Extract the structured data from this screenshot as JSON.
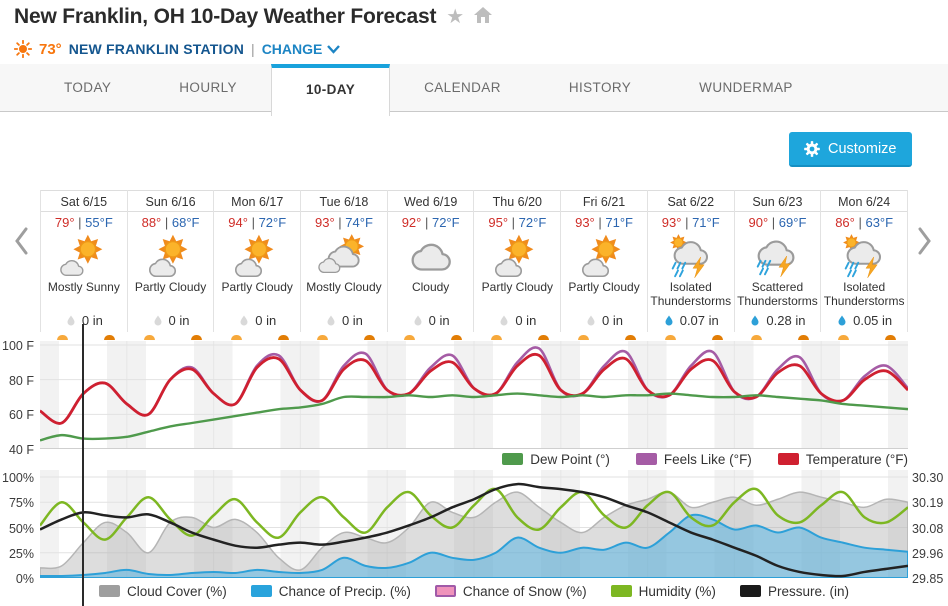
{
  "header": {
    "title": "New Franklin, OH 10-Day Weather Forecast",
    "star_icon": "★",
    "current_temp": "73°",
    "station_name": "NEW FRANKLIN STATION",
    "separator": "|",
    "change_label": "CHANGE"
  },
  "tabs": [
    {
      "label": "TODAY",
      "active": false
    },
    {
      "label": "HOURLY",
      "active": false
    },
    {
      "label": "10-DAY",
      "active": true
    },
    {
      "label": "CALENDAR",
      "active": false
    },
    {
      "label": "HISTORY",
      "active": false
    },
    {
      "label": "WUNDERMAP",
      "active": false
    }
  ],
  "customize_label": "Customize",
  "days": [
    {
      "label": "Sat 6/15",
      "high": "79°",
      "low": "55°F",
      "icon": "mostly-sunny",
      "condition": "Mostly Sunny",
      "precip": "0 in",
      "precip_active": false
    },
    {
      "label": "Sun 6/16",
      "high": "88°",
      "low": "68°F",
      "icon": "partly-cloudy",
      "condition": "Partly Cloudy",
      "precip": "0 in",
      "precip_active": false
    },
    {
      "label": "Mon 6/17",
      "high": "94°",
      "low": "72°F",
      "icon": "partly-cloudy",
      "condition": "Partly Cloudy",
      "precip": "0 in",
      "precip_active": false
    },
    {
      "label": "Tue 6/18",
      "high": "93°",
      "low": "74°F",
      "icon": "mostly-cloudy",
      "condition": "Mostly Cloudy",
      "precip": "0 in",
      "precip_active": false
    },
    {
      "label": "Wed 6/19",
      "high": "92°",
      "low": "72°F",
      "icon": "cloudy",
      "condition": "Cloudy",
      "precip": "0 in",
      "precip_active": false
    },
    {
      "label": "Thu 6/20",
      "high": "95°",
      "low": "72°F",
      "icon": "partly-cloudy",
      "condition": "Partly Cloudy",
      "precip": "0 in",
      "precip_active": false
    },
    {
      "label": "Fri 6/21",
      "high": "93°",
      "low": "71°F",
      "icon": "partly-cloudy",
      "condition": "Partly Cloudy",
      "precip": "0 in",
      "precip_active": false
    },
    {
      "label": "Sat 6/22",
      "high": "93°",
      "low": "71°F",
      "icon": "isolated-tstorms",
      "condition": "Isolated Thunderstorms",
      "precip": "0.07 in",
      "precip_active": true
    },
    {
      "label": "Sun 6/23",
      "high": "90°",
      "low": "69°F",
      "icon": "scattered-tstorms",
      "condition": "Scattered Thunderstorms",
      "precip": "0.28 in",
      "precip_active": true
    },
    {
      "label": "Mon 6/24",
      "high": "86°",
      "low": "63°F",
      "icon": "isolated-tstorms",
      "condition": "Isolated Thunderstorms",
      "precip": "0.05 in",
      "precip_active": true
    }
  ],
  "charts": {
    "temperature": {
      "type": "line",
      "x_range_days": [
        0,
        10
      ],
      "y_ticks": [
        "100 F",
        "80 F",
        "60 F",
        "40 F"
      ],
      "ylim": [
        40,
        102
      ],
      "series": [
        {
          "name": "Feels Like (°F)",
          "color": "#a55ca5",
          "values": [
            62,
            55,
            72,
            78,
            66,
            60,
            80,
            87,
            72,
            66,
            88,
            94,
            74,
            68,
            88,
            95,
            74,
            72,
            87,
            94,
            75,
            72,
            90,
            98,
            74,
            72,
            88,
            96,
            74,
            71,
            88,
            96,
            73,
            70,
            86,
            93,
            72,
            68,
            82,
            88,
            75
          ]
        },
        {
          "name": "Temperature (°F)",
          "color": "#cf2030",
          "values": [
            62,
            55,
            72,
            78,
            66,
            60,
            80,
            86,
            72,
            66,
            87,
            92,
            74,
            68,
            86,
            91,
            74,
            72,
            85,
            90,
            75,
            72,
            88,
            94,
            74,
            72,
            86,
            92,
            74,
            71,
            86,
            91,
            73,
            70,
            84,
            88,
            72,
            68,
            80,
            85,
            74
          ]
        },
        {
          "name": "Dew Point (°)",
          "color": "#4f9a4c",
          "values": [
            45,
            48,
            46,
            46,
            47,
            50,
            53,
            55,
            57,
            59,
            61,
            63,
            64,
            66,
            70,
            70,
            70,
            71,
            70,
            71,
            70,
            71,
            72,
            71,
            70,
            71,
            70,
            71,
            71,
            72,
            71,
            70,
            70,
            71,
            70,
            69,
            68,
            66,
            65,
            64,
            63
          ]
        }
      ],
      "legend": [
        {
          "label": "Dew Point (°)",
          "color": "#4f9a4c"
        },
        {
          "label": "Feels Like (°F)",
          "color": "#a55ca5"
        },
        {
          "label": "Temperature (°F)",
          "color": "#cf2030"
        }
      ]
    },
    "conditions": {
      "type": "area-line",
      "x_range_days": [
        0,
        10
      ],
      "y_ticks_left": [
        "100%",
        "75%",
        "50%",
        "25%",
        "0%"
      ],
      "y_ticks_right": [
        "30.30",
        "30.19",
        "30.08",
        "29.96",
        "29.85"
      ],
      "ylim_percent": [
        0,
        100
      ],
      "pressure_axis_in": [
        29.85,
        30.3
      ],
      "series": [
        {
          "name": "Cloud Cover (%)",
          "style": "area",
          "color": "#b0b0b0",
          "values": [
            10,
            12,
            35,
            55,
            45,
            25,
            55,
            60,
            50,
            58,
            45,
            20,
            8,
            30,
            45,
            40,
            35,
            50,
            75,
            65,
            60,
            75,
            85,
            70,
            55,
            45,
            60,
            72,
            78,
            85,
            70,
            75,
            80,
            72,
            78,
            85,
            80,
            75,
            70,
            78,
            75
          ]
        },
        {
          "name": "Chance of Precip. (%)",
          "style": "area",
          "color": "#2da0d8",
          "values": [
            2,
            2,
            3,
            5,
            8,
            4,
            3,
            5,
            6,
            5,
            8,
            6,
            5,
            8,
            20,
            12,
            10,
            15,
            25,
            20,
            18,
            25,
            40,
            30,
            25,
            30,
            28,
            35,
            30,
            45,
            62,
            58,
            48,
            52,
            45,
            50,
            40,
            35,
            30,
            28,
            26
          ]
        },
        {
          "name": "Chance of Snow (%)",
          "style": "line",
          "color": "#ef8fb6",
          "values": [
            0,
            0,
            0,
            0,
            0,
            0,
            0,
            0,
            0,
            0,
            0,
            0,
            0,
            0,
            0,
            0,
            0,
            0,
            0,
            0,
            0,
            0,
            0,
            0,
            0,
            0,
            0,
            0,
            0,
            0,
            0,
            0,
            0,
            0,
            0,
            0,
            0,
            0,
            0,
            0,
            0
          ]
        },
        {
          "name": "Humidity (%)",
          "style": "line",
          "color": "#7db722",
          "values": [
            52,
            75,
            55,
            38,
            60,
            80,
            58,
            42,
            62,
            78,
            55,
            40,
            65,
            80,
            60,
            45,
            70,
            85,
            62,
            50,
            72,
            88,
            60,
            48,
            70,
            85,
            62,
            50,
            72,
            85,
            60,
            52,
            75,
            88,
            62,
            55,
            72,
            85,
            60,
            55,
            70
          ]
        },
        {
          "name": "Pressure. (in)",
          "style": "line",
          "color": "#222222",
          "values": [
            48,
            58,
            65,
            62,
            60,
            63,
            55,
            45,
            38,
            32,
            30,
            33,
            35,
            33,
            36,
            40,
            45,
            52,
            60,
            70,
            78,
            88,
            93,
            90,
            88,
            85,
            80,
            72,
            65,
            55,
            45,
            38,
            30,
            22,
            12,
            6,
            3,
            2,
            6,
            9,
            12
          ]
        }
      ],
      "legend": [
        {
          "label": "Cloud Cover (%)",
          "color": "#9e9e9e"
        },
        {
          "label": "Chance of Precip. (%)",
          "color": "#29a3dc"
        },
        {
          "label": "Chance of Snow (%)",
          "color": "#ef93bb",
          "border": "#a05aa8"
        },
        {
          "label": "Humidity (%)",
          "color": "#7db722"
        },
        {
          "label": "Pressure. (in)",
          "color": "#1a1a1a"
        }
      ]
    }
  }
}
